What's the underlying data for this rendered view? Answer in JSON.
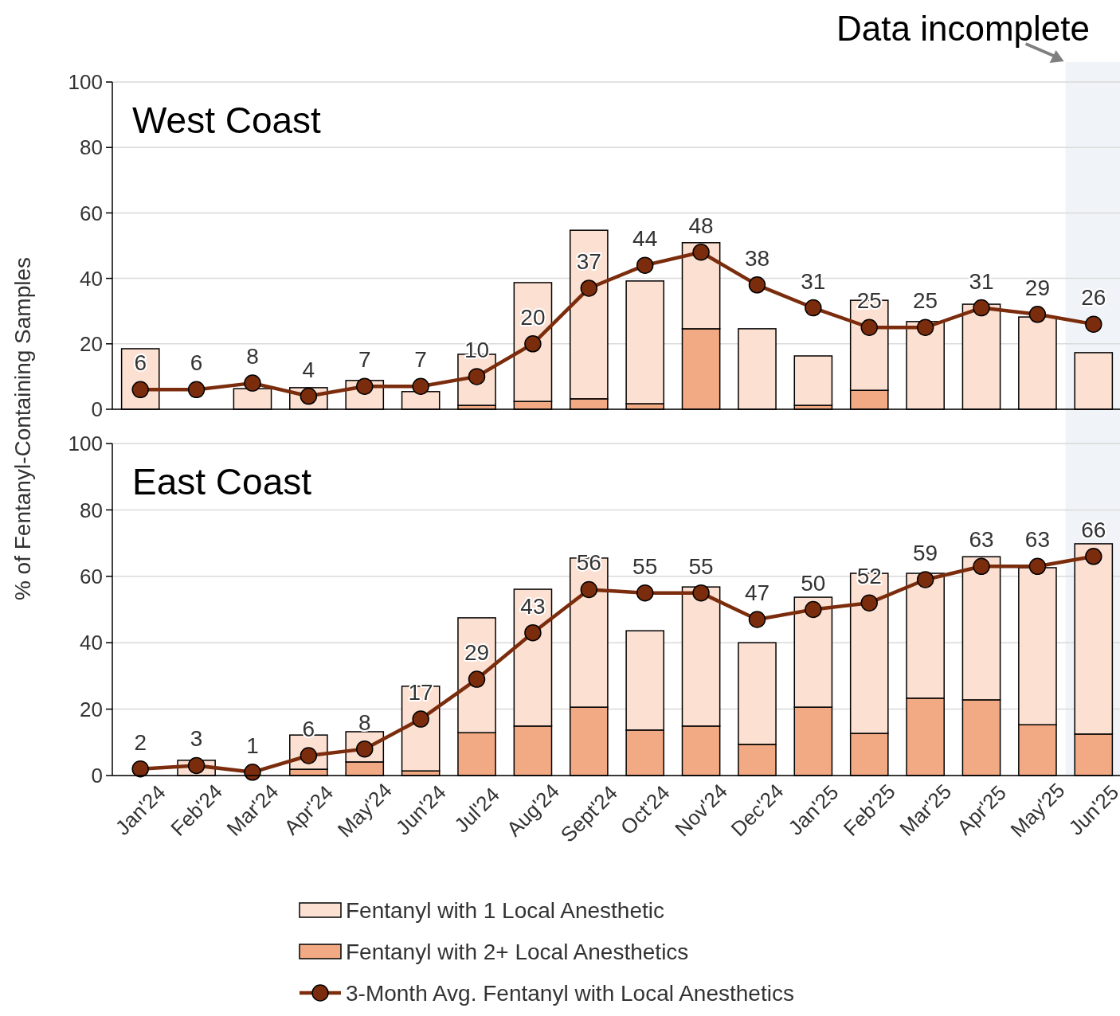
{
  "chart_data": [
    {
      "type": "bar",
      "title": "West Coast",
      "ylabel": "% of Fentanyl-Containing Samples",
      "categories": [
        null,
        null,
        null,
        null,
        null,
        null,
        null,
        null,
        null,
        null,
        null,
        null,
        null,
        null,
        null,
        null,
        null,
        null
      ],
      "stacked": true,
      "ylim": [
        0,
        100
      ],
      "yticks": [
        0,
        20,
        40,
        60,
        80,
        100
      ],
      "grid": "y",
      "tick_labels": "y",
      "marker": "circle",
      "line_style": "solid",
      "series": [
        {
          "type": "bar",
          "color": "#f2aa84",
          "values": [
            0,
            0,
            0,
            0,
            0,
            0,
            1.2,
            2.4,
            3.2,
            1.7,
            24.6,
            0,
            1.2,
            5.8,
            0,
            0,
            0,
            0
          ]
        },
        {
          "type": "bar",
          "color": "#fce0d2",
          "values": [
            18.5,
            0,
            6.3,
            6.6,
            8.8,
            5.4,
            15.6,
            36.3,
            51.5,
            37.5,
            26.3,
            24.6,
            15.1,
            27.5,
            26.8,
            32.1,
            28.2,
            17.3
          ]
        },
        {
          "type": "line",
          "color": "#7b2c0c",
          "values": [
            6,
            6,
            8,
            4,
            7,
            7,
            10,
            20,
            37,
            44,
            48,
            38,
            31,
            25,
            25,
            31,
            29,
            26
          ],
          "value_labels": [
            "6",
            "6",
            "8",
            "4",
            "7",
            "7",
            "10",
            "20",
            "37",
            "44",
            "48",
            "38",
            "31",
            "25",
            "25",
            "31",
            "29",
            "26"
          ]
        }
      ]
    },
    {
      "type": "bar",
      "title": "East Coast",
      "categories": [
        "Jan'24",
        "Feb'24",
        "Mar'24",
        "Apr'24",
        "May'24",
        "Jun'24",
        "Jul'24",
        "Aug'24",
        "Sept'24",
        "Oct'24",
        "Nov'24",
        "Dec'24",
        "Jan'25",
        "Feb'25",
        "Mar'25",
        "Apr'25",
        "May'25",
        "Jun'25"
      ],
      "stacked": true,
      "ylim": [
        0,
        100
      ],
      "yticks": [
        0,
        20,
        40,
        60,
        80,
        100
      ],
      "grid": "y",
      "marker": "circle",
      "line_style": "solid",
      "legend": "bottom",
      "bands": [
        {
          "axis": "x",
          "from": "Jun'25",
          "to": "Jun'25",
          "label": "Data incomplete",
          "color": "#f0f4f8"
        }
      ],
      "series": [
        {
          "name": "Fentanyl with 2+ Local Anesthetics",
          "type": "bar",
          "color": "#f2aa84",
          "values": [
            0,
            0,
            0,
            1.9,
            4.1,
            1.4,
            12.9,
            14.9,
            20.6,
            13.7,
            14.9,
            9.4,
            20.6,
            12.7,
            23.3,
            22.8,
            15.3,
            12.5
          ]
        },
        {
          "name": "Fentanyl with 1 Local Anesthetic",
          "type": "bar",
          "color": "#fce0d2",
          "values": [
            0,
            4.6,
            0,
            10.3,
            9.1,
            25.5,
            34.6,
            41.2,
            44.9,
            29.9,
            41.9,
            30.6,
            33.1,
            48.2,
            37.6,
            43.1,
            47.3,
            57.3
          ]
        },
        {
          "name": "3-Month Avg. Fentanyl with Local Anesthetics",
          "type": "line",
          "color": "#7b2c0c",
          "values": [
            2,
            3,
            1,
            6,
            8,
            17,
            29,
            43,
            56,
            55,
            55,
            47,
            50,
            52,
            59,
            63,
            63,
            66
          ],
          "value_labels": [
            "2",
            "3",
            "1",
            "6",
            "8",
            "17",
            "29",
            "43",
            "56",
            "55",
            "55",
            "47",
            "50",
            "52",
            "59",
            "63",
            "63",
            "66"
          ]
        }
      ]
    }
  ]
}
